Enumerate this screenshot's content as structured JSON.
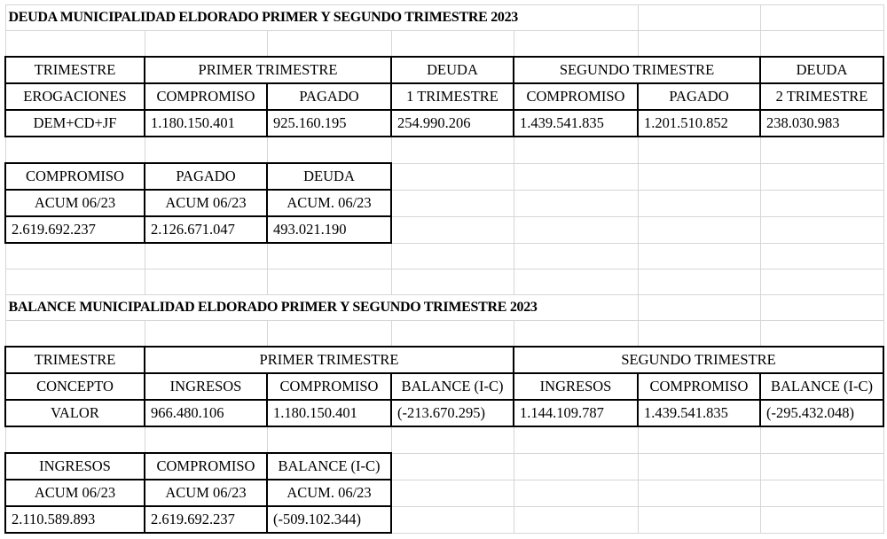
{
  "deuda": {
    "title": "DEUDA MUNICIPALIDAD ELDORADO PRIMER Y SEGUNDO TRIMESTRE 2023",
    "table1": {
      "row1": [
        "TRIMESTRE",
        "PRIMER TRIMESTRE",
        "DEUDA",
        "SEGUNDO TRIMESTRE",
        "DEUDA"
      ],
      "row2": [
        "EROGACIONES",
        "COMPROMISO",
        "PAGADO",
        "1 TRIMESTRE",
        "COMPROMISO",
        "PAGADO",
        "2 TRIMESTRE"
      ],
      "row3": [
        "DEM+CD+JF",
        "1.180.150.401",
        "925.160.195",
        "254.990.206",
        "1.439.541.835",
        "1.201.510.852",
        "238.030.983"
      ]
    },
    "table2": {
      "row1": [
        "COMPROMISO",
        "PAGADO",
        "DEUDA"
      ],
      "row2": [
        "ACUM 06/23",
        "ACUM 06/23",
        "ACUM. 06/23"
      ],
      "row3": [
        "2.619.692.237",
        "2.126.671.047",
        "493.021.190"
      ]
    }
  },
  "balance": {
    "title": "BALANCE MUNICIPALIDAD ELDORADO PRIMER Y SEGUNDO TRIMESTRE 2023",
    "table1": {
      "row1": [
        "TRIMESTRE",
        "PRIMER TRIMESTRE",
        "SEGUNDO TRIMESTRE"
      ],
      "row2": [
        "CONCEPTO",
        "INGRESOS",
        "COMPROMISO",
        "BALANCE (I-C)",
        "INGRESOS",
        "COMPROMISO",
        "BALANCE (I-C)"
      ],
      "row3": [
        "VALOR",
        "966.480.106",
        "1.180.150.401",
        "(-213.670.295)",
        "1.144.109.787",
        "1.439.541.835",
        "(-295.432.048)"
      ]
    },
    "table2": {
      "row1": [
        "INGRESOS",
        "COMPROMISO",
        "BALANCE (I-C)"
      ],
      "row2": [
        "ACUM 06/23",
        "ACUM 06/23",
        "ACUM. 06/23"
      ],
      "row3": [
        "2.110.589.893",
        "2.619.692.237",
        "(-509.102.344)"
      ]
    }
  }
}
